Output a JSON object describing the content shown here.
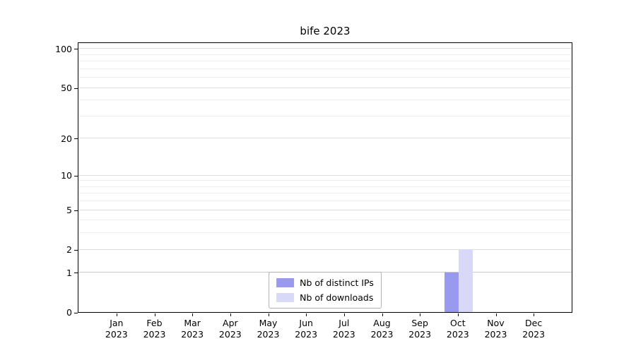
{
  "chart_data": {
    "type": "bar",
    "title": "bife 2023",
    "categories": [
      "Jan",
      "Feb",
      "Mar",
      "Apr",
      "May",
      "Jun",
      "Jul",
      "Aug",
      "Sep",
      "Oct",
      "Nov",
      "Dec"
    ],
    "year": "2023",
    "series": [
      {
        "name": "Nb of distinct IPs",
        "color": "#9999ee",
        "values": [
          0,
          0,
          0,
          0,
          0,
          0,
          0,
          0,
          0,
          1,
          0,
          0
        ]
      },
      {
        "name": "Nb of downloads",
        "color": "#d8d8f8",
        "values": [
          0,
          0,
          0,
          0,
          0,
          0,
          0,
          0,
          0,
          2,
          0,
          0
        ]
      }
    ],
    "xlabel": "",
    "ylabel": "",
    "yticks": [
      0,
      1,
      2,
      5,
      10,
      20,
      50,
      100
    ],
    "yscale": "log1p",
    "ylim": [
      0,
      113
    ],
    "grid": true,
    "legend_position": "lower-center"
  }
}
